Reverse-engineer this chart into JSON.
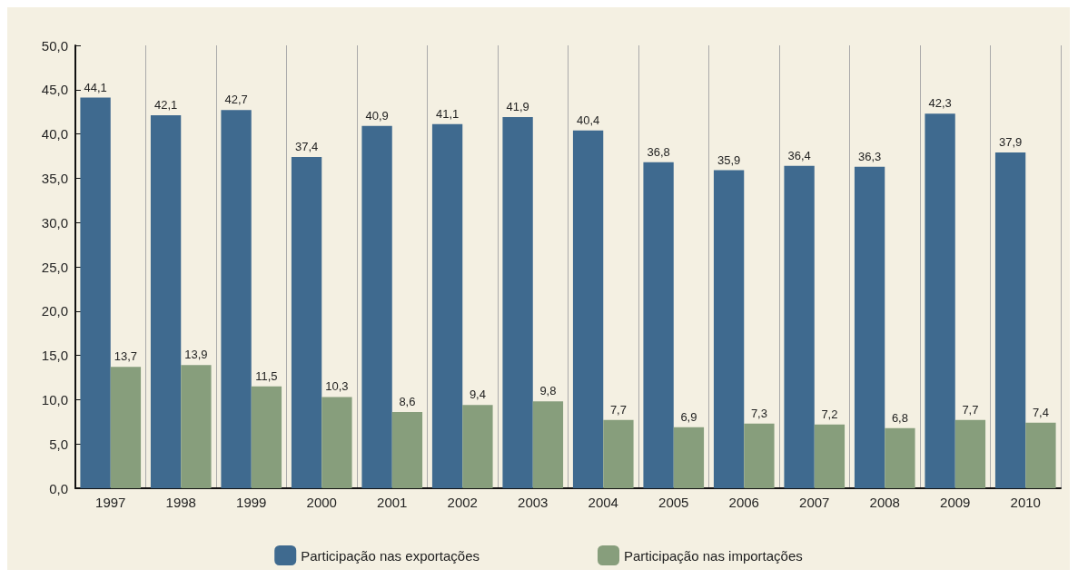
{
  "chart_data": {
    "type": "bar",
    "categories": [
      "1997",
      "1998",
      "1999",
      "2000",
      "2001",
      "2002",
      "2003",
      "2004",
      "2005",
      "2006",
      "2007",
      "2008",
      "2009",
      "2010"
    ],
    "series": [
      {
        "name": "Participação nas exportações",
        "color": "#3f6a8f",
        "values": [
          44.1,
          42.1,
          42.7,
          37.4,
          40.9,
          41.1,
          41.9,
          40.4,
          36.8,
          35.9,
          36.4,
          36.3,
          42.3,
          37.9
        ],
        "value_labels": [
          "44,1",
          "42,1",
          "42,7",
          "37,4",
          "40,9",
          "41,1",
          "41,9",
          "40,4",
          "36,8",
          "35,9",
          "36,4",
          "36,3",
          "42,3",
          "37,9"
        ]
      },
      {
        "name": "Participação nas importações",
        "color": "#879e7c",
        "values": [
          13.7,
          13.9,
          11.5,
          10.3,
          8.6,
          9.4,
          9.8,
          7.7,
          6.9,
          7.3,
          7.2,
          6.8,
          7.7,
          7.4
        ],
        "value_labels": [
          "13,7",
          "13,9",
          "11,5",
          "10,3",
          "8,6",
          "9,4",
          "9,8",
          "7,7",
          "6,9",
          "7,3",
          "7,2",
          "6,8",
          "7,7",
          "7,4"
        ]
      }
    ],
    "ylim": [
      0,
      50
    ],
    "yticks": [
      {
        "value": 0,
        "label": "0,0"
      },
      {
        "value": 5,
        "label": "5,0"
      },
      {
        "value": 10,
        "label": "10,0"
      },
      {
        "value": 15,
        "label": "15,0"
      },
      {
        "value": 20,
        "label": "20,0"
      },
      {
        "value": 25,
        "label": "25,0"
      },
      {
        "value": 30,
        "label": "30,0"
      },
      {
        "value": 35,
        "label": "35,0"
      },
      {
        "value": 40,
        "label": "40,0"
      },
      {
        "value": 45,
        "label": "45,0"
      },
      {
        "value": 50,
        "label": "50,0"
      }
    ],
    "grid": "x",
    "legend": "bottom"
  }
}
